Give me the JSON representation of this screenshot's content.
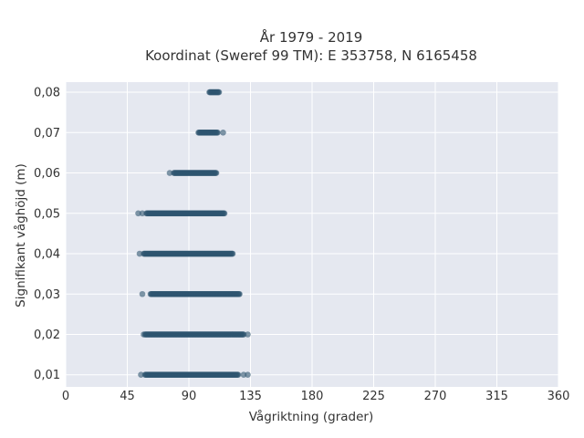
{
  "title_line1": "År 1979 - 2019",
  "title_line2": "Koordinat (Sweref 99 TM): E 353758, N 6165458",
  "chart_data": {
    "type": "scatter",
    "title": "År 1979 - 2019\nKoordinat (Sweref 99 TM): E 353758, N 6165458",
    "xlabel": "Vågriktning (grader)",
    "ylabel": "Signifikant våghöjd (m)",
    "xlim": [
      0,
      360
    ],
    "ylim": [
      0.007,
      0.0825
    ],
    "xticks": [
      0,
      45,
      90,
      135,
      180,
      225,
      270,
      315,
      360
    ],
    "xtick_labels": [
      "0",
      "45",
      "90",
      "135",
      "180",
      "225",
      "270",
      "315",
      "360"
    ],
    "yticks": [
      0.01,
      0.02,
      0.03,
      0.04,
      0.05,
      0.06,
      0.07,
      0.08
    ],
    "ytick_labels": [
      "0,01",
      "0,02",
      "0,03",
      "0,04",
      "0,05",
      "0,06",
      "0,07",
      "0,08"
    ],
    "grid": true,
    "background": "#e5e8f0",
    "marker_color": "#2e5570",
    "series": [
      {
        "points": [
          {
            "y": 0.01,
            "dense_from": 58,
            "dense_to": 126,
            "outliers": [
              55,
              130,
              133
            ]
          },
          {
            "y": 0.02,
            "dense_from": 58,
            "dense_to": 130,
            "outliers": [
              57,
              133
            ]
          },
          {
            "y": 0.03,
            "dense_from": 62,
            "dense_to": 127,
            "outliers": [
              56
            ]
          },
          {
            "y": 0.04,
            "dense_from": 57,
            "dense_to": 122,
            "outliers": [
              54
            ]
          },
          {
            "y": 0.05,
            "dense_from": 59,
            "dense_to": 116,
            "outliers": [
              53,
              56
            ]
          },
          {
            "y": 0.06,
            "dense_from": 79,
            "dense_to": 110,
            "outliers": [
              76
            ]
          },
          {
            "y": 0.07,
            "dense_from": 97,
            "dense_to": 111,
            "outliers": [
              115
            ]
          },
          {
            "y": 0.08,
            "dense_from": 105,
            "dense_to": 112,
            "outliers": []
          }
        ]
      }
    ]
  }
}
